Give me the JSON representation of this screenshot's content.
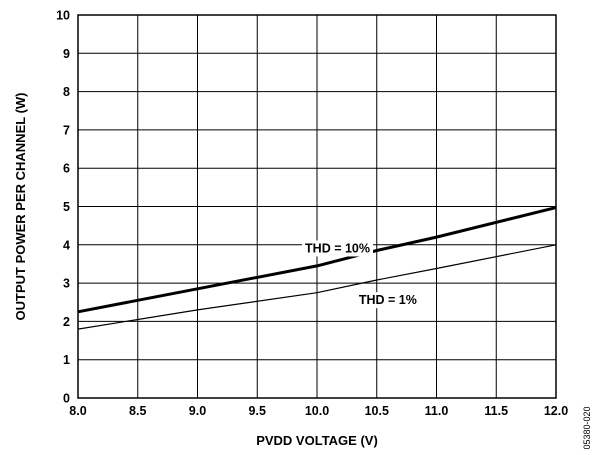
{
  "chart_data": {
    "type": "line",
    "xlabel": "PVDD VOLTAGE (V)",
    "ylabel": "OUTPUT POWER PER CHANNEL (W)",
    "xlim": [
      8.0,
      12.0
    ],
    "ylim": [
      0,
      10
    ],
    "x_ticks": [
      "8.0",
      "8.5",
      "9.0",
      "9.5",
      "10.0",
      "10.5",
      "11.0",
      "11.5",
      "12.0"
    ],
    "y_ticks": [
      "0",
      "1",
      "2",
      "3",
      "4",
      "5",
      "6",
      "7",
      "8",
      "9",
      "10"
    ],
    "grid": true,
    "series": [
      {
        "name": "THD = 10%",
        "x": [
          8.0,
          9.0,
          10.0,
          10.5,
          11.0,
          12.0
        ],
        "values": [
          2.25,
          2.85,
          3.45,
          3.85,
          4.2,
          4.97
        ]
      },
      {
        "name": "THD = 1%",
        "x": [
          8.0,
          9.0,
          10.0,
          10.5,
          11.0,
          12.0
        ],
        "values": [
          1.8,
          2.3,
          2.75,
          3.08,
          3.38,
          4.0
        ]
      }
    ],
    "annotations": [
      "THD = 10%",
      "THD = 1%"
    ],
    "figure_id": "05380-020"
  }
}
